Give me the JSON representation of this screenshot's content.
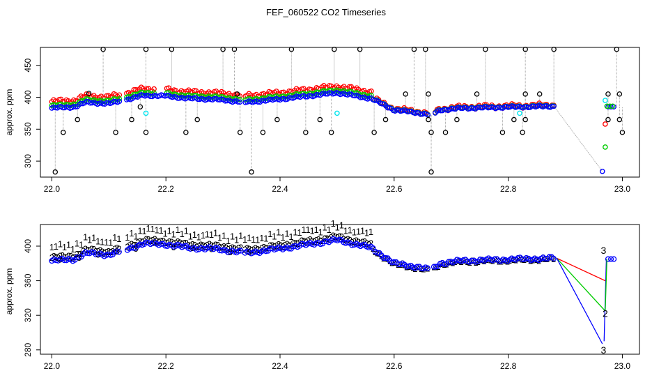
{
  "title": "FEF_060522  CO2 Timeseries",
  "colors": {
    "series1": "#ff0000",
    "series2": "#00cc00",
    "series3": "#0000ff",
    "spike": "#000000",
    "alt": "#00e5ee",
    "drop": "#a0a0a0"
  },
  "chart_data": [
    {
      "type": "scatter",
      "ylabel": "approx. ppm",
      "xlim": [
        21.98,
        23.03
      ],
      "ylim": [
        275,
        478
      ],
      "x_ticks": [
        "22.0",
        "22.2",
        "22.4",
        "22.6",
        "22.8",
        "23.0"
      ],
      "y_ticks": [
        "300",
        "350",
        "400",
        "450"
      ],
      "baseline_knots": [
        [
          22.0,
          383
        ],
        [
          22.04,
          385
        ],
        [
          22.06,
          392
        ],
        [
          22.1,
          390
        ],
        [
          22.14,
          398
        ],
        [
          22.16,
          403
        ],
        [
          22.2,
          402
        ],
        [
          22.24,
          398
        ],
        [
          22.28,
          397
        ],
        [
          22.32,
          394
        ],
        [
          22.34,
          392
        ],
        [
          22.4,
          397
        ],
        [
          22.46,
          403
        ],
        [
          22.5,
          407
        ],
        [
          22.56,
          398
        ],
        [
          22.6,
          380
        ],
        [
          22.64,
          376
        ],
        [
          22.665,
          372
        ],
        [
          22.68,
          380
        ],
        [
          22.72,
          383
        ],
        [
          22.88,
          386
        ],
        [
          22.965,
          284
        ],
        [
          22.975,
          386
        ],
        [
          22.985,
          384
        ]
      ],
      "spikes": [
        {
          "x": 22.006,
          "y": 283
        },
        {
          "x": 22.02,
          "y": 345
        },
        {
          "x": 22.045,
          "y": 365
        },
        {
          "x": 22.065,
          "y": 406
        },
        {
          "x": 22.09,
          "y": 475
        },
        {
          "x": 22.112,
          "y": 345
        },
        {
          "x": 22.14,
          "y": 365
        },
        {
          "x": 22.155,
          "y": 385
        },
        {
          "x": 22.165,
          "y": 475
        },
        {
          "x": 22.165,
          "y": 345
        },
        {
          "x": 22.21,
          "y": 475
        },
        {
          "x": 22.235,
          "y": 345
        },
        {
          "x": 22.255,
          "y": 365
        },
        {
          "x": 22.3,
          "y": 475
        },
        {
          "x": 22.32,
          "y": 475
        },
        {
          "x": 22.325,
          "y": 405
        },
        {
          "x": 22.33,
          "y": 345
        },
        {
          "x": 22.35,
          "y": 283
        },
        {
          "x": 22.37,
          "y": 345
        },
        {
          "x": 22.395,
          "y": 365
        },
        {
          "x": 22.42,
          "y": 475
        },
        {
          "x": 22.445,
          "y": 345
        },
        {
          "x": 22.47,
          "y": 365
        },
        {
          "x": 22.49,
          "y": 345
        },
        {
          "x": 22.495,
          "y": 475
        },
        {
          "x": 22.54,
          "y": 475
        },
        {
          "x": 22.565,
          "y": 345
        },
        {
          "x": 22.585,
          "y": 365
        },
        {
          "x": 22.62,
          "y": 405
        },
        {
          "x": 22.635,
          "y": 475
        },
        {
          "x": 22.655,
          "y": 475
        },
        {
          "x": 22.66,
          "y": 405
        },
        {
          "x": 22.66,
          "y": 365
        },
        {
          "x": 22.665,
          "y": 345
        },
        {
          "x": 22.665,
          "y": 283
        },
        {
          "x": 22.69,
          "y": 345
        },
        {
          "x": 22.71,
          "y": 365
        },
        {
          "x": 22.745,
          "y": 405
        },
        {
          "x": 22.76,
          "y": 475
        },
        {
          "x": 22.79,
          "y": 345
        },
        {
          "x": 22.81,
          "y": 365
        },
        {
          "x": 22.825,
          "y": 345
        },
        {
          "x": 22.83,
          "y": 475
        },
        {
          "x": 22.83,
          "y": 405
        },
        {
          "x": 22.83,
          "y": 365
        },
        {
          "x": 22.855,
          "y": 405
        },
        {
          "x": 22.88,
          "y": 475
        },
        {
          "x": 22.975,
          "y": 405
        },
        {
          "x": 22.975,
          "y": 365
        },
        {
          "x": 22.99,
          "y": 475
        },
        {
          "x": 22.995,
          "y": 405
        },
        {
          "x": 22.995,
          "y": 365
        },
        {
          "x": 23.0,
          "y": 345
        }
      ],
      "cyan_points": [
        {
          "x": 22.165,
          "y": 375
        },
        {
          "x": 22.5,
          "y": 375
        },
        {
          "x": 22.82,
          "y": 375
        },
        {
          "x": 22.97,
          "y": 395
        }
      ],
      "end_points": [
        {
          "x": 22.965,
          "y": 284,
          "series": 3
        },
        {
          "x": 22.97,
          "y": 322,
          "series": 2
        },
        {
          "x": 22.97,
          "y": 358,
          "series": 1
        }
      ]
    },
    {
      "type": "scatter",
      "ylabel": "approx. ppm",
      "xlim": [
        21.98,
        23.03
      ],
      "ylim": [
        275,
        425
      ],
      "x_ticks": [
        "22.0",
        "22.2",
        "22.4",
        "22.6",
        "22.8",
        "23.0"
      ],
      "y_ticks": [
        "280",
        "320",
        "360",
        "400"
      ],
      "series": [
        {
          "name": "1",
          "offset_before": 16,
          "offset_after": 2
        },
        {
          "name": "2",
          "offset_before": 4,
          "offset_after": 0
        },
        {
          "name": "3",
          "offset_before": 0,
          "offset_after": 0
        }
      ],
      "offset_end_x": 22.56,
      "baseline_knots": [
        [
          22.0,
          383
        ],
        [
          22.04,
          385
        ],
        [
          22.06,
          392
        ],
        [
          22.1,
          390
        ],
        [
          22.14,
          398
        ],
        [
          22.16,
          403
        ],
        [
          22.2,
          402
        ],
        [
          22.24,
          398
        ],
        [
          22.28,
          397
        ],
        [
          22.32,
          394
        ],
        [
          22.34,
          392
        ],
        [
          22.4,
          397
        ],
        [
          22.46,
          403
        ],
        [
          22.5,
          407
        ],
        [
          22.56,
          398
        ],
        [
          22.6,
          380
        ],
        [
          22.64,
          376
        ],
        [
          22.665,
          372
        ],
        [
          22.68,
          380
        ],
        [
          22.72,
          383
        ],
        [
          22.88,
          386
        ]
      ],
      "drops": [
        {
          "series": "1",
          "from": [
            22.885,
            386
          ],
          "to": [
            22.97,
            360
          ]
        },
        {
          "series": "2",
          "from": [
            22.885,
            386
          ],
          "to": [
            22.97,
            325
          ]
        },
        {
          "series": "3",
          "from": [
            22.885,
            386
          ],
          "to": [
            22.965,
            287
          ]
        }
      ],
      "end_labels": [
        {
          "text": "3",
          "x": 22.967,
          "y": 395,
          "series": "3"
        },
        {
          "text": "2",
          "x": 22.97,
          "y": 322,
          "series": "2"
        },
        {
          "text": "3",
          "x": 22.967,
          "y": 280,
          "series": "3"
        }
      ]
    }
  ]
}
